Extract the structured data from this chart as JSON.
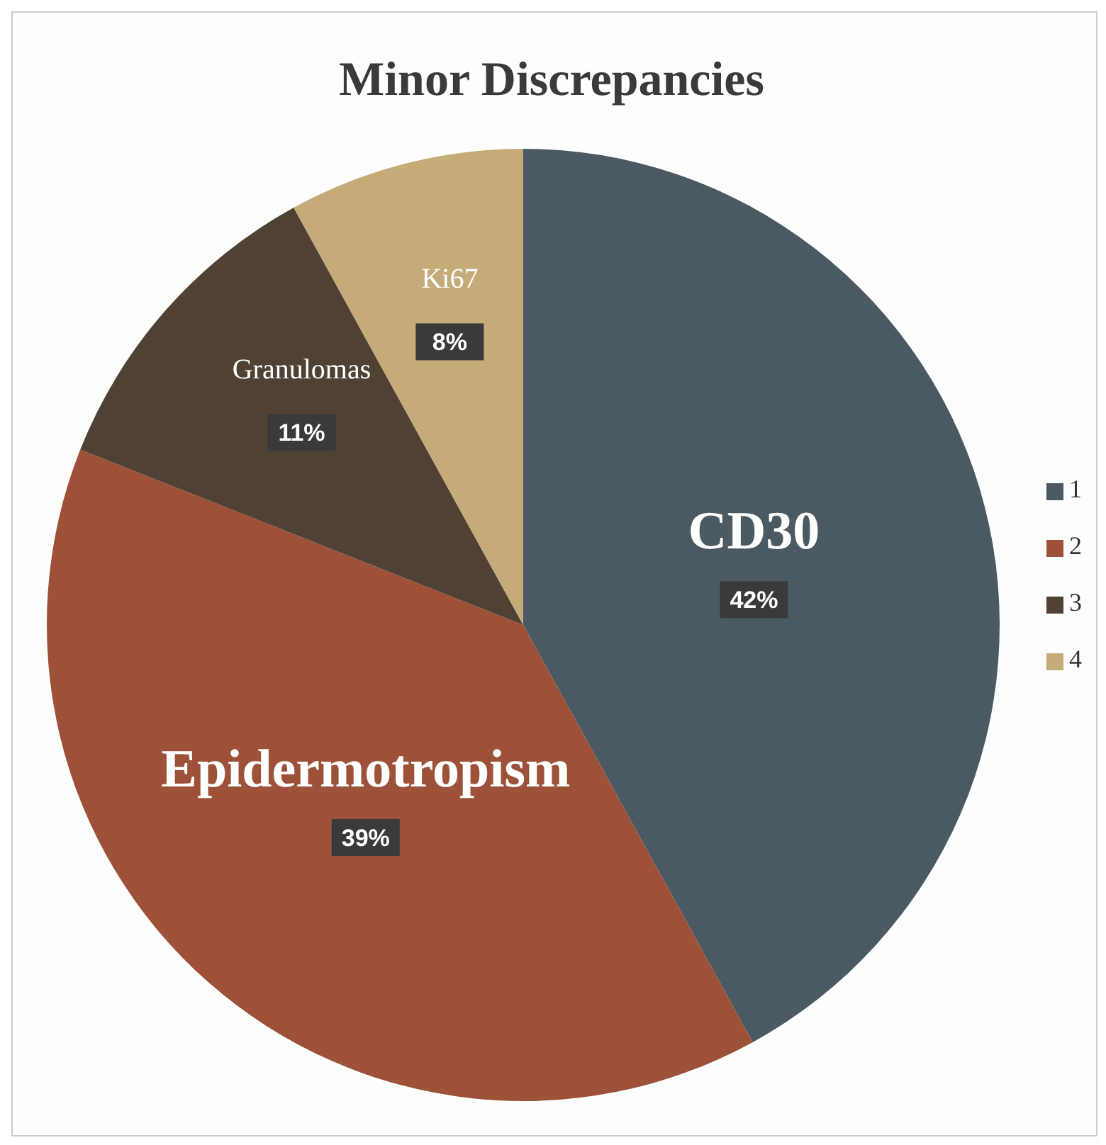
{
  "chart_data": {
    "type": "pie",
    "title": "Minor Discrepancies",
    "categories": [
      "1",
      "2",
      "3",
      "4"
    ],
    "values": [
      42,
      39,
      11,
      8
    ],
    "colors": [
      "#4a5962",
      "#9c5138",
      "#4f4234",
      "#c4ab78"
    ],
    "value_labels": [
      "42%",
      "39%",
      "11%",
      "8%"
    ],
    "annotations": [
      {
        "text": "CD30",
        "x": "1"
      },
      {
        "text": "Epidermotropism",
        "x": "2"
      },
      {
        "text": "Granulomas",
        "x": "3"
      },
      {
        "text": "Ki67",
        "x": "4"
      }
    ],
    "legend": "right"
  }
}
